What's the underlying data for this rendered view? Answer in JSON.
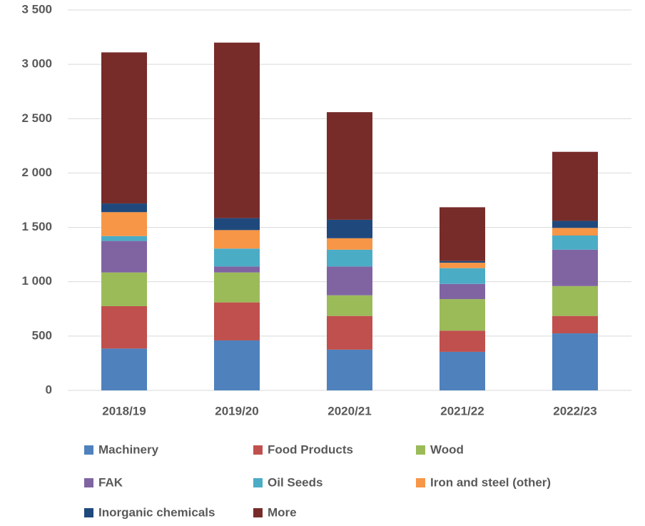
{
  "chart_data": {
    "type": "stacked_bar",
    "categories": [
      "2018/19",
      "2019/20",
      "2020/21",
      "2021/22",
      "2022/23"
    ],
    "series": [
      {
        "name": "Machinery",
        "color": "#4f81bd",
        "values": [
          385,
          460,
          375,
          355,
          525
        ]
      },
      {
        "name": "Food Products",
        "color": "#c0504d",
        "values": [
          390,
          350,
          310,
          195,
          160
        ]
      },
      {
        "name": "Wood",
        "color": "#9bbb59",
        "values": [
          310,
          275,
          190,
          290,
          275
        ]
      },
      {
        "name": "FAK",
        "color": "#8064a2",
        "values": [
          290,
          55,
          265,
          140,
          335
        ]
      },
      {
        "name": "Oil Seeds",
        "color": "#4bacc6",
        "values": [
          45,
          165,
          155,
          145,
          130
        ]
      },
      {
        "name": "Iron and steel (other)",
        "color": "#f79646",
        "values": [
          220,
          170,
          105,
          50,
          70
        ]
      },
      {
        "name": "Inorganic chemicals",
        "color": "#1f497d",
        "values": [
          80,
          110,
          170,
          15,
          65
        ]
      },
      {
        "name": "More",
        "color": "#772c2a",
        "values": [
          1390,
          1615,
          990,
          495,
          635
        ]
      }
    ],
    "ylim": [
      0,
      3500
    ],
    "yticks": [
      0,
      500,
      {
        "value": 1000,
        "label": "1 000"
      },
      {
        "value": 1500,
        "label": "1 500"
      },
      {
        "value": 2000,
        "label": "2 000"
      },
      {
        "value": 2500,
        "label": "2 500"
      },
      {
        "value": 3000,
        "label": "3 000"
      },
      {
        "value": 3500,
        "label": "3 500"
      }
    ],
    "grid": true,
    "legend": "bottom"
  }
}
